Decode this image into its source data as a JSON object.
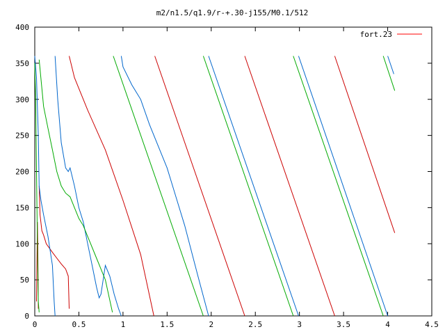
{
  "chart_data": {
    "type": "line",
    "title": "m2/n1.5/q1.9/r-+.30-j155/M0.1/512",
    "xlabel": "",
    "ylabel": "",
    "xlim": [
      0,
      4.5
    ],
    "ylim": [
      0,
      400
    ],
    "x_ticks": [
      0,
      0.5,
      1,
      1.5,
      2,
      2.5,
      3,
      3.5,
      4,
      4.5
    ],
    "x_tick_labels": [
      "0",
      "0.5",
      "1",
      "1.5",
      "2",
      "2.5",
      "3",
      "3.5",
      "4",
      "4.5"
    ],
    "y_ticks": [
      0,
      50,
      100,
      150,
      200,
      250,
      300,
      350,
      400
    ],
    "y_tick_labels": [
      "0",
      "50",
      "100",
      "150",
      "200",
      "250",
      "300",
      "350",
      "400"
    ],
    "grid": false,
    "legend_position": "top-right",
    "legend": [
      {
        "label": "fort.23",
        "color": "#ff0000"
      }
    ],
    "series": [
      {
        "name": "fort.23",
        "color": "#cc0000",
        "segments": [
          [
            [
              0.02,
              20
            ],
            [
              0.03,
              130
            ],
            [
              0.035,
              95
            ],
            [
              0.04,
              10
            ]
          ],
          [
            [
              0.05,
              180
            ],
            [
              0.06,
              140
            ],
            [
              0.08,
              118
            ],
            [
              0.1,
              112
            ],
            [
              0.13,
              100
            ],
            [
              0.2,
              88
            ],
            [
              0.25,
              80
            ],
            [
              0.3,
              72
            ],
            [
              0.35,
              65
            ],
            [
              0.38,
              55
            ],
            [
              0.39,
              10
            ]
          ],
          [
            [
              0.39,
              360
            ],
            [
              0.45,
              330
            ],
            [
              0.6,
              285
            ],
            [
              0.8,
              230
            ],
            [
              1.0,
              160
            ],
            [
              1.2,
              85
            ],
            [
              1.35,
              0
            ]
          ],
          [
            [
              1.36,
              360
            ],
            [
              2.38,
              0
            ]
          ],
          [
            [
              2.38,
              360
            ],
            [
              3.4,
              0
            ]
          ],
          [
            [
              3.4,
              360
            ],
            [
              4.08,
              115
            ]
          ]
        ]
      },
      {
        "name": "",
        "color": "#0066cc",
        "segments": [
          [
            [
              0.0,
              360
            ],
            [
              0.02,
              330
            ],
            [
              0.04,
              250
            ],
            [
              0.05,
              180
            ],
            [
              0.07,
              160
            ],
            [
              0.1,
              140
            ],
            [
              0.15,
              110
            ],
            [
              0.2,
              70
            ],
            [
              0.22,
              20
            ],
            [
              0.23,
              0
            ]
          ],
          [
            [
              0.23,
              360
            ],
            [
              0.26,
              300
            ],
            [
              0.3,
              240
            ],
            [
              0.35,
              205
            ],
            [
              0.38,
              200
            ],
            [
              0.4,
              205
            ],
            [
              0.45,
              180
            ],
            [
              0.5,
              150
            ],
            [
              0.55,
              130
            ],
            [
              0.6,
              100
            ],
            [
              0.65,
              70
            ],
            [
              0.7,
              40
            ],
            [
              0.73,
              25
            ],
            [
              0.75,
              30
            ],
            [
              0.8,
              70
            ],
            [
              0.85,
              55
            ],
            [
              0.9,
              30
            ],
            [
              0.95,
              10
            ],
            [
              0.98,
              0
            ]
          ],
          [
            [
              0.98,
              360
            ],
            [
              1.0,
              345
            ],
            [
              1.1,
              320
            ],
            [
              1.2,
              300
            ],
            [
              1.3,
              265
            ],
            [
              1.5,
              205
            ],
            [
              1.7,
              125
            ],
            [
              1.85,
              55
            ],
            [
              1.97,
              0
            ]
          ],
          [
            [
              1.97,
              360
            ],
            [
              2.99,
              0
            ]
          ],
          [
            [
              2.99,
              360
            ],
            [
              4.0,
              0
            ]
          ],
          [
            [
              4.0,
              360
            ],
            [
              4.07,
              335
            ]
          ]
        ]
      },
      {
        "name": "",
        "color": "#00aa00",
        "segments": [
          [
            [
              0.0,
              350
            ],
            [
              0.01,
              300
            ],
            [
              0.02,
              200
            ],
            [
              0.03,
              100
            ],
            [
              0.04,
              20
            ],
            [
              0.05,
              5
            ]
          ],
          [
            [
              0.05,
              355
            ],
            [
              0.1,
              290
            ],
            [
              0.15,
              260
            ],
            [
              0.2,
              230
            ],
            [
              0.25,
              200
            ],
            [
              0.3,
              180
            ],
            [
              0.35,
              170
            ],
            [
              0.4,
              165
            ],
            [
              0.45,
              150
            ],
            [
              0.5,
              135
            ],
            [
              0.55,
              125
            ],
            [
              0.6,
              110
            ],
            [
              0.7,
              80
            ],
            [
              0.8,
              50
            ],
            [
              0.88,
              5
            ]
          ],
          [
            [
              0.89,
              360
            ],
            [
              1.91,
              0
            ]
          ],
          [
            [
              1.91,
              360
            ],
            [
              2.93,
              0
            ]
          ],
          [
            [
              2.93,
              360
            ],
            [
              3.95,
              0
            ]
          ],
          [
            [
              3.95,
              360
            ],
            [
              4.08,
              312
            ]
          ]
        ]
      }
    ]
  }
}
